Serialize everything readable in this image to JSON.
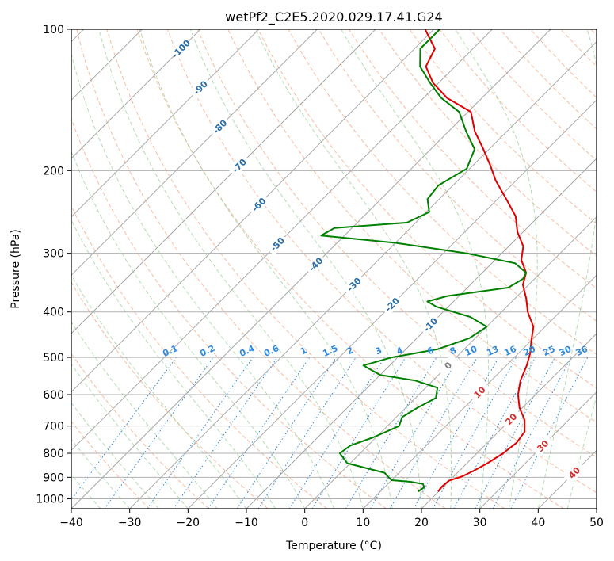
{
  "chart_data": {
    "type": "line",
    "title": "wetPf2_C2E5.2020.029.17.41.G24",
    "xlabel": "Temperature (°C)",
    "ylabel": "Pressure (hPa)",
    "xlim": [
      -40,
      50
    ],
    "ylim": [
      1050,
      100
    ],
    "y_scale": "log",
    "x_ticks": [
      "−40",
      "−30",
      "−20",
      "−10",
      "0",
      "10",
      "20",
      "30",
      "40",
      "50"
    ],
    "x_tick_values": [
      -40,
      -30,
      -20,
      -10,
      0,
      10,
      20,
      30,
      40,
      50
    ],
    "y_ticks": [
      "100",
      "200",
      "300",
      "400",
      "500",
      "600",
      "700",
      "800",
      "900",
      "1000"
    ],
    "y_tick_values": [
      100,
      200,
      300,
      400,
      500,
      600,
      700,
      800,
      900,
      1000
    ],
    "grid": true,
    "skew": 45,
    "series": [
      {
        "color": "#e00000",
        "kind": "temperature",
        "points": [
          [
            19.9,
            965
          ],
          [
            19.7,
            945
          ],
          [
            19.9,
            915
          ],
          [
            21.5,
            895
          ],
          [
            22.5,
            870
          ],
          [
            23.5,
            840
          ],
          [
            24.5,
            800
          ],
          [
            25.0,
            760
          ],
          [
            24.5,
            720
          ],
          [
            22.5,
            680
          ],
          [
            19.5,
            640
          ],
          [
            17.0,
            600
          ],
          [
            15.0,
            560
          ],
          [
            13.5,
            520
          ],
          [
            12.0,
            490
          ],
          [
            10.0,
            460
          ],
          [
            8.0,
            430
          ],
          [
            4.5,
            400
          ],
          [
            2.0,
            375
          ],
          [
            -1.0,
            350
          ],
          [
            -2.5,
            330
          ],
          [
            -5.5,
            310
          ],
          [
            -7.5,
            290
          ],
          [
            -11.0,
            270
          ],
          [
            -14.0,
            250
          ],
          [
            -18.5,
            230
          ],
          [
            -23.5,
            210
          ],
          [
            -27.0,
            195
          ],
          [
            -31.0,
            180
          ],
          [
            -35.5,
            165
          ],
          [
            -39.5,
            150
          ],
          [
            -46.0,
            140
          ],
          [
            -51.0,
            130
          ],
          [
            -55.0,
            120
          ],
          [
            -56.5,
            110
          ],
          [
            -61.5,
            100
          ]
        ]
      },
      {
        "color": "#008000",
        "kind": "dewpoint",
        "points": [
          [
            16.5,
            965
          ],
          [
            16.8,
            945
          ],
          [
            16.0,
            930
          ],
          [
            13.5,
            920
          ],
          [
            10.0,
            913
          ],
          [
            9.0,
            900
          ],
          [
            7.5,
            880
          ],
          [
            3.5,
            860
          ],
          [
            -0.5,
            840
          ],
          [
            -3.5,
            800
          ],
          [
            -3.0,
            770
          ],
          [
            -0.5,
            740
          ],
          [
            2.0,
            700
          ],
          [
            1.0,
            670
          ],
          [
            2.0,
            640
          ],
          [
            3.5,
            610
          ],
          [
            2.0,
            580
          ],
          [
            -3.0,
            560
          ],
          [
            -10.0,
            545
          ],
          [
            -14.5,
            520
          ],
          [
            -11.0,
            500
          ],
          [
            -4.5,
            480
          ],
          [
            -1.0,
            455
          ],
          [
            0.0,
            430
          ],
          [
            -4.5,
            410
          ],
          [
            -12.0,
            390
          ],
          [
            -14.5,
            380
          ],
          [
            -12.0,
            370
          ],
          [
            -3.0,
            355
          ],
          [
            -2.0,
            340
          ],
          [
            -2.5,
            330
          ],
          [
            -6.0,
            315
          ],
          [
            -16.0,
            300
          ],
          [
            -30.0,
            285
          ],
          [
            -44.0,
            275
          ],
          [
            -43.0,
            265
          ],
          [
            -31.5,
            258
          ],
          [
            -29.5,
            245
          ],
          [
            -32.0,
            230
          ],
          [
            -32.5,
            215
          ],
          [
            -30.5,
            198
          ],
          [
            -32.5,
            180
          ],
          [
            -37.0,
            165
          ],
          [
            -41.5,
            150
          ],
          [
            -47.0,
            140
          ],
          [
            -51.5,
            130
          ],
          [
            -56.0,
            120
          ],
          [
            -59.0,
            110
          ],
          [
            -59.0,
            100
          ]
        ]
      }
    ],
    "isotherm_labels": [
      "-100",
      "-90",
      "-80",
      "-70",
      "-60",
      "-50",
      "-40",
      "-30",
      "-20",
      "-10",
      "0",
      "10",
      "20",
      "30",
      "40"
    ],
    "isotherm_label_values": [
      -100,
      -90,
      -80,
      -70,
      -60,
      -50,
      -40,
      -30,
      -20,
      -10,
      0,
      10,
      20,
      30,
      40
    ],
    "mixing_ratio_labels": [
      "0.1",
      "0.2",
      "0.4",
      "0.6",
      "1",
      "1.5",
      "2",
      "3",
      "4",
      "6",
      "8",
      "10",
      "13",
      "16",
      "20",
      "25",
      "30",
      "36"
    ],
    "mixing_ratio_values": [
      0.1,
      0.2,
      0.4,
      0.6,
      1,
      1.5,
      2,
      3,
      4,
      6,
      8,
      10,
      13,
      16,
      20,
      25,
      30,
      36
    ]
  }
}
